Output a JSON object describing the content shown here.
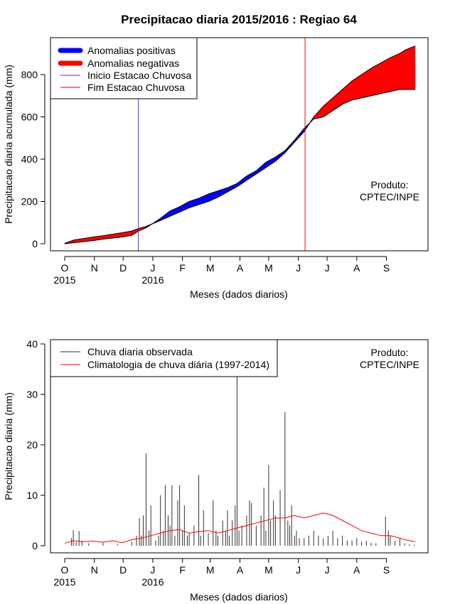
{
  "title": "Precipitacao diaria 2015/2016 : Regiao 64",
  "colors": {
    "positive": "#0000ff",
    "negative": "#ff0000",
    "start": "#3a3acf",
    "end": "#ff0000",
    "observed": "#333333",
    "climatology": "#ff0000",
    "frame": "#000000"
  },
  "chart_data": [
    {
      "type": "area",
      "title": "Precipitacao diaria 2015/2016 : Regiao 64",
      "xlabel": "Meses (dados diarios)",
      "ylabel": "Precipitacao diaria acumulada (mm)",
      "xlim": [
        0,
        372
      ],
      "ylim": [
        0,
        950
      ],
      "yticks": [
        0,
        200,
        400,
        600,
        800
      ],
      "months": [
        "O",
        "N",
        "D",
        "J",
        "F",
        "M",
        "A",
        "M",
        "J",
        "J",
        "A",
        "S"
      ],
      "month_start_days": [
        0,
        31,
        61,
        92,
        123,
        152,
        183,
        213,
        244,
        274,
        305,
        336
      ],
      "years": [
        {
          "day": 0,
          "label": "2015"
        },
        {
          "day": 92,
          "label": "2016"
        }
      ],
      "legend": {
        "position": "top-left",
        "entries": [
          "Anomalias positivas",
          "Anomalias negativas",
          "Inicio Estacao Chuvosa",
          "Fim Estacao Chuvosa"
        ]
      },
      "annotation": [
        "Produto:",
        "CPTEC/INPE"
      ],
      "wet_season_start_day": 77,
      "wet_season_end_day": 251,
      "observed_cumulative": {
        "x": [
          0,
          10,
          20,
          30,
          40,
          50,
          60,
          70,
          77,
          85,
          100,
          110,
          120,
          130,
          140,
          150,
          160,
          170,
          180,
          190,
          200,
          210,
          220,
          230,
          240,
          250,
          260,
          270,
          280,
          290,
          300,
          310,
          320,
          330,
          340,
          350,
          355,
          360,
          366
        ],
        "values": [
          0,
          5,
          10,
          15,
          22,
          27,
          32,
          40,
          60,
          75,
          120,
          155,
          175,
          200,
          215,
          235,
          250,
          265,
          285,
          320,
          345,
          385,
          410,
          440,
          490,
          545,
          590,
          600,
          630,
          660,
          680,
          690,
          700,
          710,
          720,
          730,
          730,
          730,
          730
        ]
      },
      "climatology_cumulative": {
        "x": [
          0,
          10,
          20,
          30,
          40,
          50,
          60,
          70,
          77,
          85,
          100,
          110,
          120,
          130,
          140,
          150,
          160,
          170,
          180,
          190,
          200,
          210,
          220,
          230,
          240,
          250,
          260,
          270,
          280,
          290,
          300,
          310,
          320,
          330,
          340,
          350,
          355,
          360,
          366
        ],
        "values": [
          2,
          18,
          25,
          32,
          38,
          45,
          52,
          60,
          72,
          82,
          110,
          130,
          150,
          170,
          185,
          200,
          220,
          245,
          270,
          300,
          330,
          360,
          390,
          430,
          480,
          530,
          600,
          650,
          690,
          730,
          770,
          800,
          830,
          855,
          880,
          900,
          915,
          925,
          935
        ]
      }
    },
    {
      "type": "line",
      "xlabel": "Meses (dados diarios)",
      "ylabel": "Precipitacao diaria (mm)",
      "xlim": [
        0,
        372
      ],
      "ylim": [
        0,
        40
      ],
      "yticks": [
        0,
        10,
        20,
        30,
        40
      ],
      "months": [
        "O",
        "N",
        "D",
        "J",
        "F",
        "M",
        "A",
        "M",
        "J",
        "J",
        "A",
        "S"
      ],
      "month_start_days": [
        0,
        31,
        61,
        92,
        123,
        152,
        183,
        213,
        244,
        274,
        305,
        336
      ],
      "years": [
        {
          "day": 0,
          "label": "2015"
        },
        {
          "day": 92,
          "label": "2016"
        }
      ],
      "legend": {
        "position": "top-left",
        "entries": [
          "Chuva diaria observada",
          "Climatologia de chuva diária (1997-2014)"
        ]
      },
      "annotation": [
        "Produto:",
        "CPTEC/INPE"
      ],
      "observed_daily": {
        "x": [
          7,
          9,
          12,
          15,
          18,
          25,
          40,
          55,
          70,
          75,
          78,
          80,
          82,
          85,
          88,
          90,
          95,
          98,
          100,
          103,
          105,
          108,
          110,
          112,
          115,
          118,
          120,
          123,
          125,
          128,
          130,
          135,
          140,
          142,
          145,
          150,
          155,
          158,
          160,
          165,
          168,
          170,
          172,
          175,
          178,
          180,
          182,
          185,
          190,
          193,
          195,
          200,
          205,
          208,
          210,
          213,
          215,
          218,
          220,
          225,
          230,
          233,
          235,
          237,
          240,
          242,
          245,
          250,
          255,
          260,
          265,
          270,
          275,
          280,
          285,
          290,
          295,
          300,
          305,
          310,
          315,
          320,
          325,
          335,
          338,
          340,
          345,
          350,
          355,
          360,
          365
        ],
        "values": [
          1.5,
          3.1,
          0.8,
          2.9,
          1.0,
          0.5,
          0.6,
          0.3,
          0.8,
          2.0,
          5.5,
          2.0,
          6.0,
          18.3,
          3.0,
          8.0,
          1.0,
          2.0,
          10.0,
          3.0,
          12.0,
          6.0,
          4.0,
          12.0,
          2.0,
          9.0,
          12.0,
          3.0,
          8.0,
          2.0,
          2.5,
          4.0,
          14.0,
          2.0,
          7.0,
          2.5,
          9.0,
          3.0,
          2.0,
          5.0,
          3.0,
          7.0,
          2.0,
          5.0,
          8.0,
          34.0,
          3.0,
          4.0,
          6.0,
          9.0,
          8.5,
          4.0,
          6.0,
          11.5,
          3.0,
          16.0,
          5.0,
          9.0,
          6.0,
          11.0,
          26.5,
          5.0,
          4.0,
          8.0,
          2.0,
          3.0,
          1.5,
          1.5,
          2.0,
          3.0,
          2.0,
          1.5,
          2.0,
          3.0,
          1.5,
          2.0,
          1.0,
          1.0,
          1.5,
          0.8,
          1.0,
          0.6,
          0.5,
          5.8,
          3.0,
          2.0,
          1.0,
          1.5,
          0.5,
          0.3,
          0.2
        ]
      },
      "climatology_daily": {
        "x": [
          0,
          10,
          20,
          30,
          40,
          50,
          60,
          70,
          80,
          90,
          100,
          110,
          120,
          130,
          140,
          150,
          160,
          170,
          180,
          190,
          200,
          210,
          220,
          230,
          240,
          250,
          260,
          270,
          280,
          290,
          300,
          310,
          320,
          330,
          340,
          350,
          360,
          366
        ],
        "values": [
          0.5,
          1.0,
          0.8,
          0.9,
          0.7,
          1.0,
          0.6,
          1.2,
          1.5,
          2.0,
          2.5,
          3.0,
          3.2,
          2.5,
          2.8,
          3.0,
          2.5,
          3.0,
          3.5,
          4.0,
          4.5,
          5.0,
          5.5,
          5.5,
          6.0,
          5.5,
          6.0,
          6.5,
          6.0,
          5.0,
          4.0,
          3.0,
          2.5,
          2.0,
          2.0,
          1.5,
          1.0,
          0.8
        ]
      }
    }
  ]
}
